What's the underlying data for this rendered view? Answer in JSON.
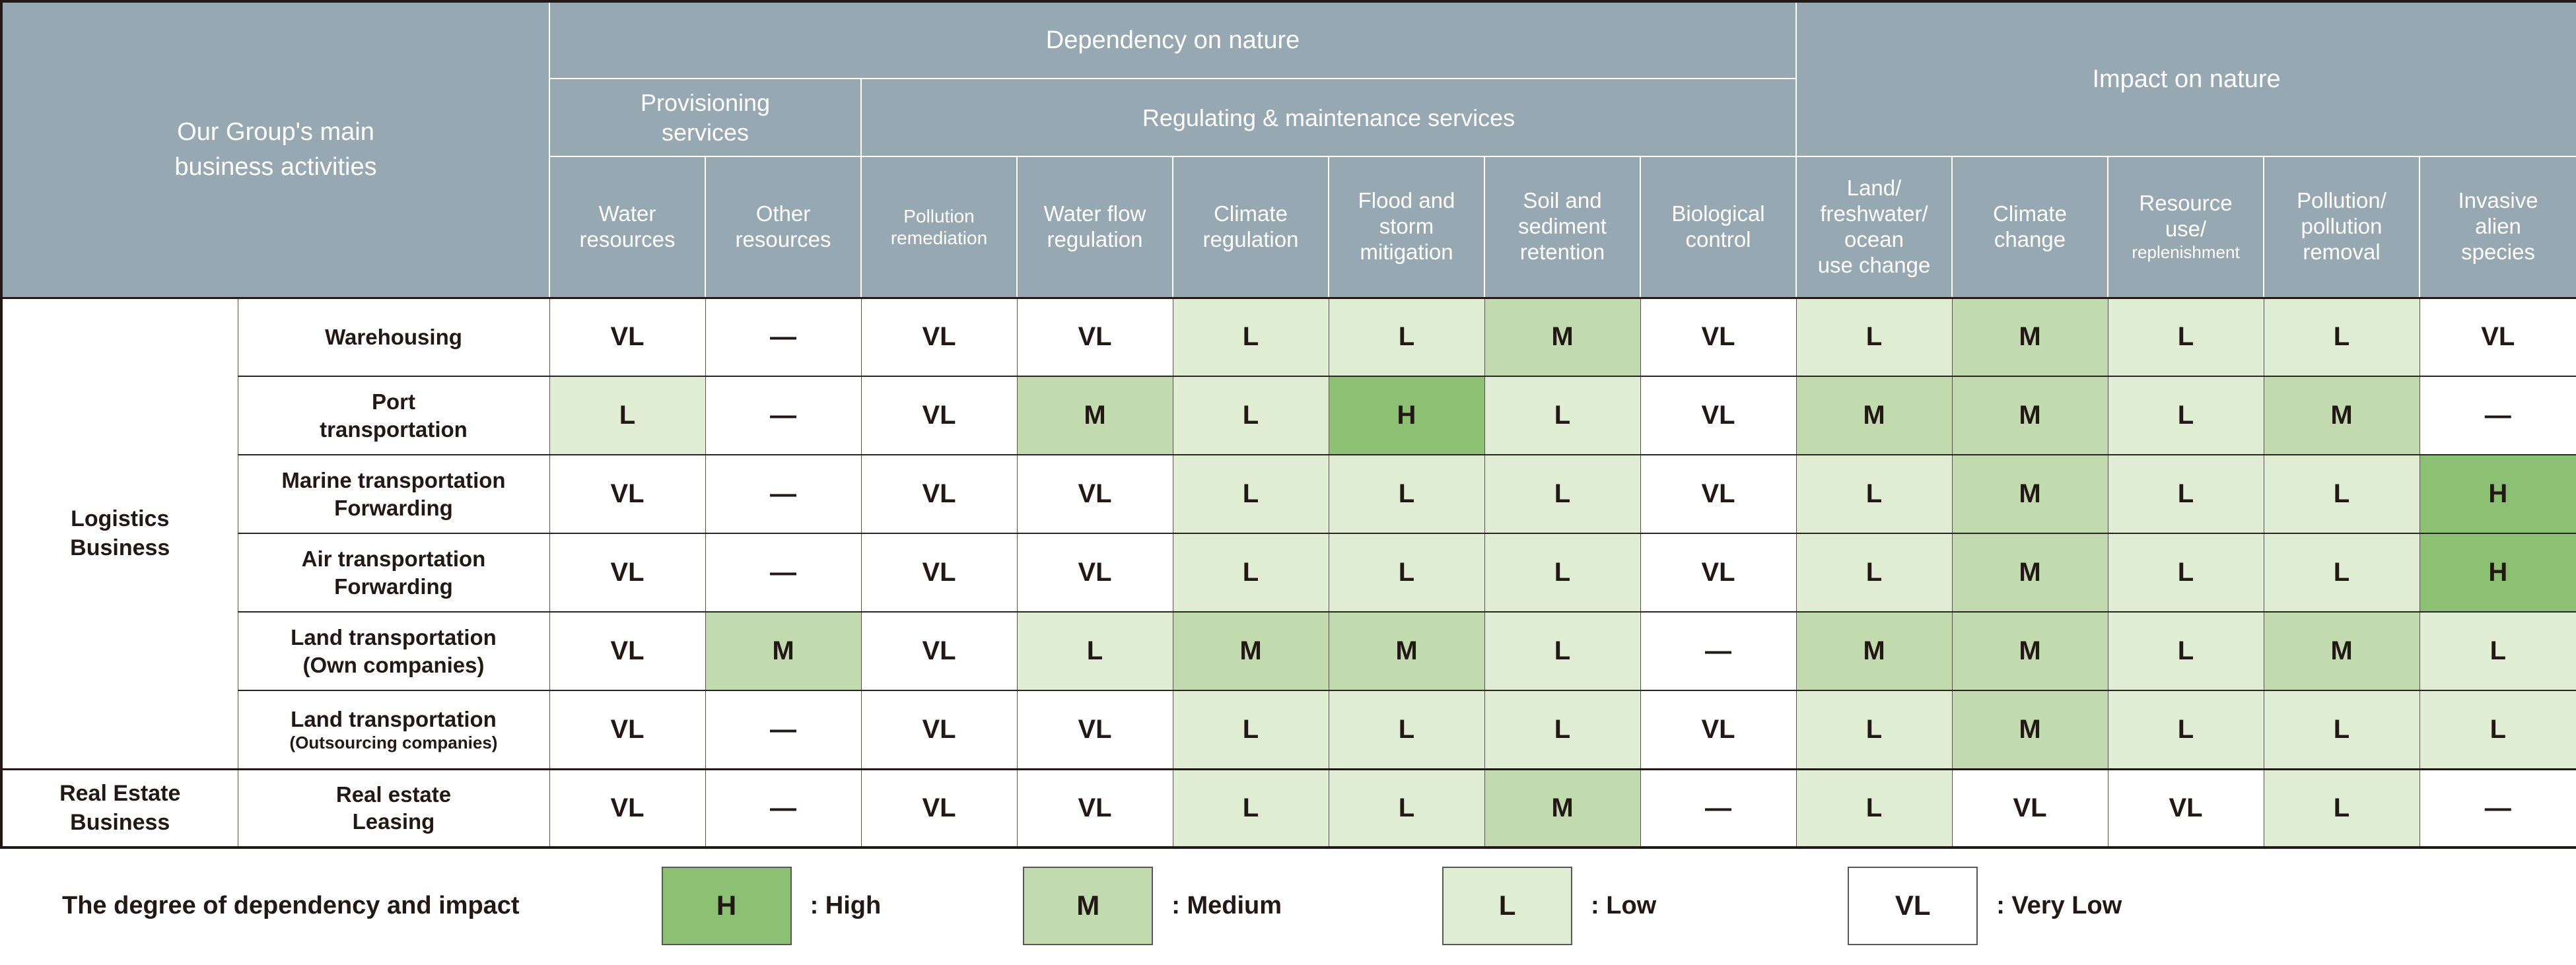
{
  "colors": {
    "header_bg": "#96a8b1",
    "header_text": "#ffffff",
    "text_dark": "#231815",
    "high": "#8cc173",
    "medium": "#c1dbae",
    "low": "#dfeed3",
    "very_low": "#ffffff"
  },
  "header": {
    "corner": "Our Group's main\nbusiness activities",
    "dependency": "Dependency on nature",
    "impact": "Impact on nature",
    "provisioning": "Provisioning\nservices",
    "regulating": "Regulating & maintenance services"
  },
  "columns": [
    {
      "label": "Water\nresources"
    },
    {
      "label": "Other\nresources"
    },
    {
      "label": "Pollution\nremediation",
      "small": true
    },
    {
      "label": "Water flow\nregulation"
    },
    {
      "label": "Climate\nregulation"
    },
    {
      "label": "Flood and\nstorm\nmitigation"
    },
    {
      "label": "Soil and\nsediment\nretention"
    },
    {
      "label": "Biological\ncontrol"
    },
    {
      "label": "Land/\nfreshwater/\nocean\nuse change"
    },
    {
      "label": "Climate\nchange"
    },
    {
      "label": "Resource\nuse/",
      "small_line": "replenishment"
    },
    {
      "label": "Pollution/\npollution\nremoval"
    },
    {
      "label": "Invasive\nalien\nspecies"
    }
  ],
  "rows": [
    {
      "group": "Logistics\nBusiness",
      "group_span": 6,
      "activity": "Warehousing",
      "values": [
        "VL",
        "—",
        "VL",
        "VL",
        "L",
        "L",
        "M",
        "VL",
        "L",
        "M",
        "L",
        "L",
        "VL"
      ]
    },
    {
      "activity": "Port\ntransportation",
      "values": [
        "L",
        "—",
        "VL",
        "M",
        "L",
        "H",
        "L",
        "VL",
        "M",
        "M",
        "L",
        "M",
        "—"
      ]
    },
    {
      "activity": "Marine transportation\nForwarding",
      "values": [
        "VL",
        "—",
        "VL",
        "VL",
        "L",
        "L",
        "L",
        "VL",
        "L",
        "M",
        "L",
        "L",
        "H"
      ]
    },
    {
      "activity": "Air transportation\nForwarding",
      "values": [
        "VL",
        "—",
        "VL",
        "VL",
        "L",
        "L",
        "L",
        "VL",
        "L",
        "M",
        "L",
        "L",
        "H"
      ]
    },
    {
      "activity": "Land transportation\n(Own companies)",
      "values": [
        "VL",
        "M",
        "VL",
        "L",
        "M",
        "M",
        "L",
        "—",
        "M",
        "M",
        "L",
        "M",
        "L"
      ]
    },
    {
      "activity": "Land transportation",
      "activity_small": "(Outsourcing companies)",
      "values": [
        "VL",
        "—",
        "VL",
        "VL",
        "L",
        "L",
        "L",
        "VL",
        "L",
        "M",
        "L",
        "L",
        "L"
      ]
    },
    {
      "group": "Real Estate\nBusiness",
      "group_span": 1,
      "new_group": true,
      "activity": "Real estate\nLeasing",
      "values": [
        "VL",
        "—",
        "VL",
        "VL",
        "L",
        "L",
        "M",
        "—",
        "L",
        "VL",
        "VL",
        "L",
        "—"
      ]
    }
  ],
  "legend": {
    "title": "The degree of dependency and impact",
    "items": [
      {
        "key": "H",
        "label": ": High"
      },
      {
        "key": "M",
        "label": ": Medium"
      },
      {
        "key": "L",
        "label": ": Low"
      },
      {
        "key": "VL",
        "label": ": Very Low"
      }
    ]
  }
}
